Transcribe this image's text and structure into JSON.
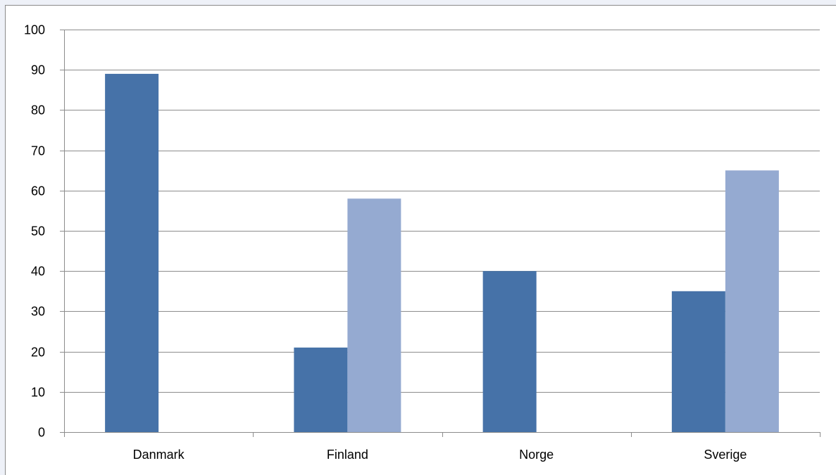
{
  "chart_data": {
    "type": "bar",
    "categories": [
      "Danmark",
      "Finland",
      "Norge",
      "Sverige"
    ],
    "series": [
      {
        "values": [
          89,
          21,
          40,
          35
        ],
        "color": "#4672a8"
      },
      {
        "values": [
          null,
          58,
          null,
          65
        ],
        "color": "#95aad1"
      }
    ],
    "y_ticks": [
      "0",
      "10",
      "20",
      "30",
      "40",
      "50",
      "60",
      "70",
      "80",
      "90",
      "100"
    ],
    "ylim": [
      0,
      100
    ],
    "grid": true,
    "legend": "none",
    "title": "",
    "xlabel": "",
    "ylabel": ""
  }
}
